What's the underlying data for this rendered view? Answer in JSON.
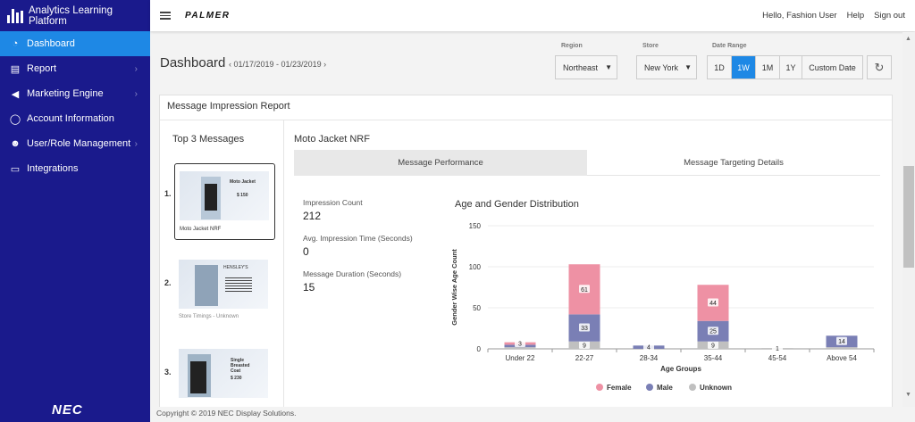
{
  "app": {
    "title": "Analytics Learning Platform",
    "vendor_logo": "NEC"
  },
  "sidebar": {
    "items": [
      {
        "label": "Dashboard",
        "icon": "gauge-icon"
      },
      {
        "label": "Report",
        "icon": "report-icon"
      },
      {
        "label": "Marketing Engine",
        "icon": "megaphone-icon"
      },
      {
        "label": "Account Information",
        "icon": "user-icon"
      },
      {
        "label": "User/Role Management",
        "icon": "users-icon"
      },
      {
        "label": "Integrations",
        "icon": "monitor-icon"
      }
    ]
  },
  "topbar": {
    "brand": "PALMER",
    "greeting": "Hello, Fashion User",
    "help": "Help",
    "signout": "Sign out"
  },
  "header": {
    "title": "Dashboard",
    "date_range": "‹ 01/17/2019 - 01/23/2019 ›",
    "region_label": "Region",
    "region_value": "Northeast",
    "store_label": "Store",
    "store_value": "New York",
    "range_label": "Date Range",
    "ranges": [
      "1D",
      "1W",
      "1M",
      "1Y",
      "Custom Date"
    ],
    "active_range": "1W"
  },
  "card": {
    "title": "Message Impression Report",
    "top3_title": "Top 3 Messages",
    "messages": [
      {
        "num": "1.",
        "caption": "Moto Jacket NRF",
        "headline": "Moto Jacket",
        "price": "$ 150"
      },
      {
        "num": "2.",
        "caption": "Store Timings - Unknown",
        "headline": "HENSLEY'S",
        "price": ""
      },
      {
        "num": "3.",
        "caption": "",
        "headline": "Single Breasted Coat",
        "price": "$ 230"
      }
    ],
    "selected_message": "Moto Jacket NRF",
    "tabs": [
      "Message Performance",
      "Message Targeting Details"
    ],
    "metrics": [
      {
        "label": "Impression Count",
        "value": "212"
      },
      {
        "label": "Avg. Impression Time (Seconds)",
        "value": "0"
      },
      {
        "label": "Message Duration (Seconds)",
        "value": "15"
      }
    ]
  },
  "chart_data": {
    "type": "bar",
    "stacked": true,
    "title": "Age and Gender Distribution",
    "xlabel": "Age Groups",
    "ylabel": "Gender Wise Age Count",
    "ylim": [
      0,
      150
    ],
    "yticks": [
      0,
      50,
      100,
      150
    ],
    "categories": [
      "Under 22",
      "22-27",
      "28-34",
      "35-44",
      "45-54",
      "Above 54"
    ],
    "series": [
      {
        "name": "Unknown",
        "color": "#c0c0c0",
        "values": [
          2,
          9,
          0,
          9,
          1,
          2
        ]
      },
      {
        "name": "Male",
        "color": "#7a7fb5",
        "values": [
          3,
          33,
          4,
          25,
          0,
          14
        ]
      },
      {
        "name": "Female",
        "color": "#ee91a4",
        "values": [
          3,
          61,
          0,
          44,
          0,
          0
        ]
      }
    ],
    "labels": [
      {
        "series": "Female",
        "category": "Under 22",
        "text": "3"
      },
      {
        "series": "Female",
        "category": "22-27",
        "text": "61"
      },
      {
        "series": "Male",
        "category": "22-27",
        "text": "33"
      },
      {
        "series": "Unknown",
        "category": "22-27",
        "text": "9"
      },
      {
        "series": "Male",
        "category": "28-34",
        "text": "4"
      },
      {
        "series": "Female",
        "category": "35-44",
        "text": "44"
      },
      {
        "series": "Male",
        "category": "35-44",
        "text": "25"
      },
      {
        "series": "Unknown",
        "category": "35-44",
        "text": "9"
      },
      {
        "series": "Unknown",
        "category": "45-54",
        "text": "1"
      },
      {
        "series": "Male",
        "category": "Above 54",
        "text": "14"
      }
    ],
    "legend_order": [
      "Female",
      "Male",
      "Unknown"
    ],
    "legend_position": "bottom"
  },
  "footer": {
    "text": "Copyright © 2019 NEC Display Solutions."
  }
}
